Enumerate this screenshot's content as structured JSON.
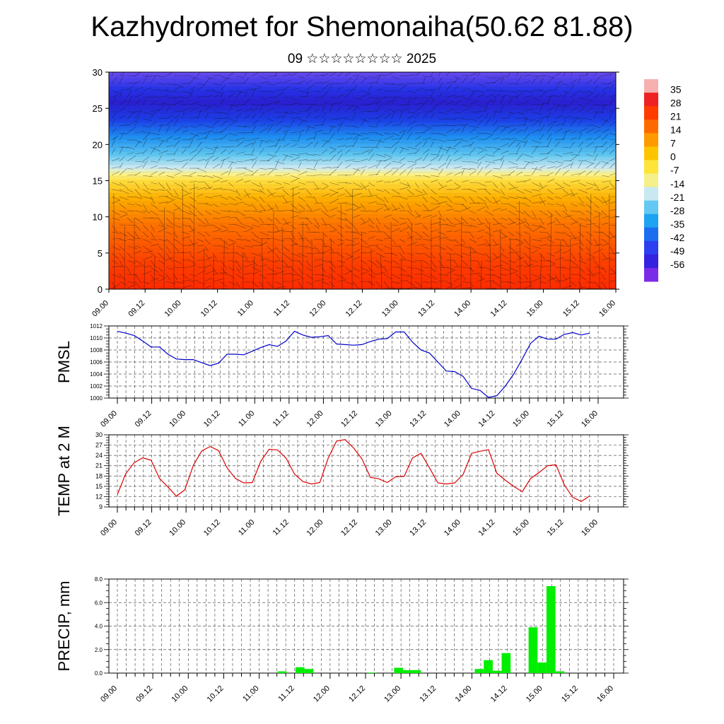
{
  "page": {
    "title": "Kazhydromet for Shemonaiha(50.62 81.88)",
    "subtitle": "09 ☆☆☆☆☆☆☆☆ 2025"
  },
  "colors": {
    "pmsl_line": "#0000cc",
    "temp_line": "#dd0000",
    "precip_bar": "#00ee00",
    "colorbar": [
      "#f6b0b0",
      "#ee2222",
      "#ff3b00",
      "#ff6a00",
      "#ff9a00",
      "#ffc400",
      "#ffe43a",
      "#f5f08a",
      "#c9e9f2",
      "#63c9f2",
      "#1ea3f2",
      "#1b6ef0",
      "#2b3ef0",
      "#3322e0",
      "#7b2be8"
    ]
  },
  "chart_data": [
    {
      "type": "heatmap",
      "name": "cross-section",
      "xlabel": "",
      "ylabel": "",
      "ylim": [
        0,
        30
      ],
      "yticks": [
        "0",
        "5",
        "10",
        "15",
        "20",
        "25",
        "30"
      ],
      "xticks": [
        "09.00",
        "09.12",
        "10.00",
        "10.12",
        "11.00",
        "11.12",
        "12.00",
        "12.12",
        "13.00",
        "13.12",
        "14.00",
        "14.12",
        "15.00",
        "15.12",
        "16.00"
      ],
      "colorbar_labels": [
        "35",
        "28",
        "21",
        "14",
        "7",
        "0",
        "-7",
        "-14",
        "-21",
        "-28",
        "-35",
        "-42",
        "-49",
        "-56"
      ],
      "grid": false
    },
    {
      "type": "line",
      "name": "pmsl",
      "ylabel": "PMSL",
      "ylim": [
        1000,
        1012
      ],
      "yticks": [
        "1000",
        "1002",
        "1004",
        "1006",
        "1008",
        "1010",
        "1012"
      ],
      "xticks": [
        "09.00",
        "09.12",
        "10.00",
        "10.12",
        "11.00",
        "11.12",
        "12.00",
        "12.12",
        "13.00",
        "13.12",
        "14.00",
        "14.12",
        "15.00",
        "15.12",
        "16.00"
      ],
      "grid": true,
      "values": [
        1011.1,
        1010.8,
        1010.4,
        1009.5,
        1008.5,
        1008.5,
        1007.3,
        1006.5,
        1006.4,
        1006.4,
        1005.9,
        1005.4,
        1005.8,
        1007.3,
        1007.3,
        1007.2,
        1007.8,
        1008.4,
        1008.9,
        1008.6,
        1009.5,
        1011.1,
        1010.5,
        1010.1,
        1010.2,
        1010.4,
        1009.0,
        1008.9,
        1008.8,
        1008.9,
        1009.4,
        1009.8,
        1009.9,
        1011.0,
        1011.0,
        1009.3,
        1008.0,
        1007.5,
        1006.0,
        1004.5,
        1004.4,
        1003.6,
        1001.6,
        1001.3,
        1000.1,
        1000.4,
        1002.0,
        1004.0,
        1006.5,
        1009.1,
        1010.3,
        1009.8,
        1009.8,
        1010.6,
        1010.9,
        1010.5,
        1010.8
      ]
    },
    {
      "type": "line",
      "name": "temp",
      "ylabel": "TEMP at 2 M",
      "ylim": [
        9,
        30
      ],
      "yticks": [
        "9",
        "12",
        "15",
        "18",
        "21",
        "24",
        "27",
        "30"
      ],
      "xticks": [
        "09.00",
        "09.12",
        "10.00",
        "10.12",
        "11.00",
        "11.12",
        "12.00",
        "12.12",
        "13.00",
        "13.12",
        "14.00",
        "14.12",
        "15.00",
        "15.12",
        "16.00"
      ],
      "grid": true,
      "values": [
        12.6,
        18.7,
        21.9,
        23.3,
        22.6,
        17.3,
        14.8,
        12.1,
        14.0,
        21.1,
        25.3,
        26.6,
        25.4,
        20.4,
        17.3,
        16.0,
        16.1,
        22.3,
        25.8,
        25.6,
        23.2,
        18.6,
        16.4,
        15.7,
        16.1,
        23.2,
        28.2,
        28.6,
        26.2,
        23.0,
        17.6,
        17.2,
        16.1,
        17.8,
        17.9,
        23.3,
        24.6,
        20.4,
        16.0,
        15.7,
        16.0,
        18.5,
        24.6,
        25.2,
        25.7,
        18.8,
        16.8,
        15.0,
        13.4,
        17.3,
        19.0,
        21.0,
        21.3,
        15.4,
        11.8,
        10.6,
        12.2
      ]
    },
    {
      "type": "bar",
      "name": "precip",
      "ylabel": "PRECIP, mm",
      "ylim": [
        0,
        8
      ],
      "yticks": [
        "0.0",
        "2.0",
        "4.0",
        "6.0",
        "8.0"
      ],
      "xticks": [
        "09.00",
        "09.12",
        "10.00",
        "10.12",
        "11.00",
        "11.12",
        "12.00",
        "12.12",
        "13.00",
        "13.12",
        "14.00",
        "14.12",
        "15.00",
        "15.12",
        "16.00"
      ],
      "grid": true,
      "values": [
        0,
        0,
        0,
        0,
        0,
        0,
        0,
        0,
        0,
        0,
        0,
        0,
        0,
        0,
        0,
        0,
        0,
        0,
        0,
        0.15,
        0,
        0.5,
        0.35,
        0,
        0,
        0,
        0,
        0,
        0,
        0.05,
        0,
        0,
        0.45,
        0.25,
        0.25,
        0,
        0,
        0,
        0,
        0,
        0,
        0.35,
        1.1,
        0.2,
        1.7,
        0,
        0,
        3.9,
        0.9,
        7.4,
        0.15,
        0,
        0,
        0,
        0,
        0,
        0
      ]
    }
  ]
}
